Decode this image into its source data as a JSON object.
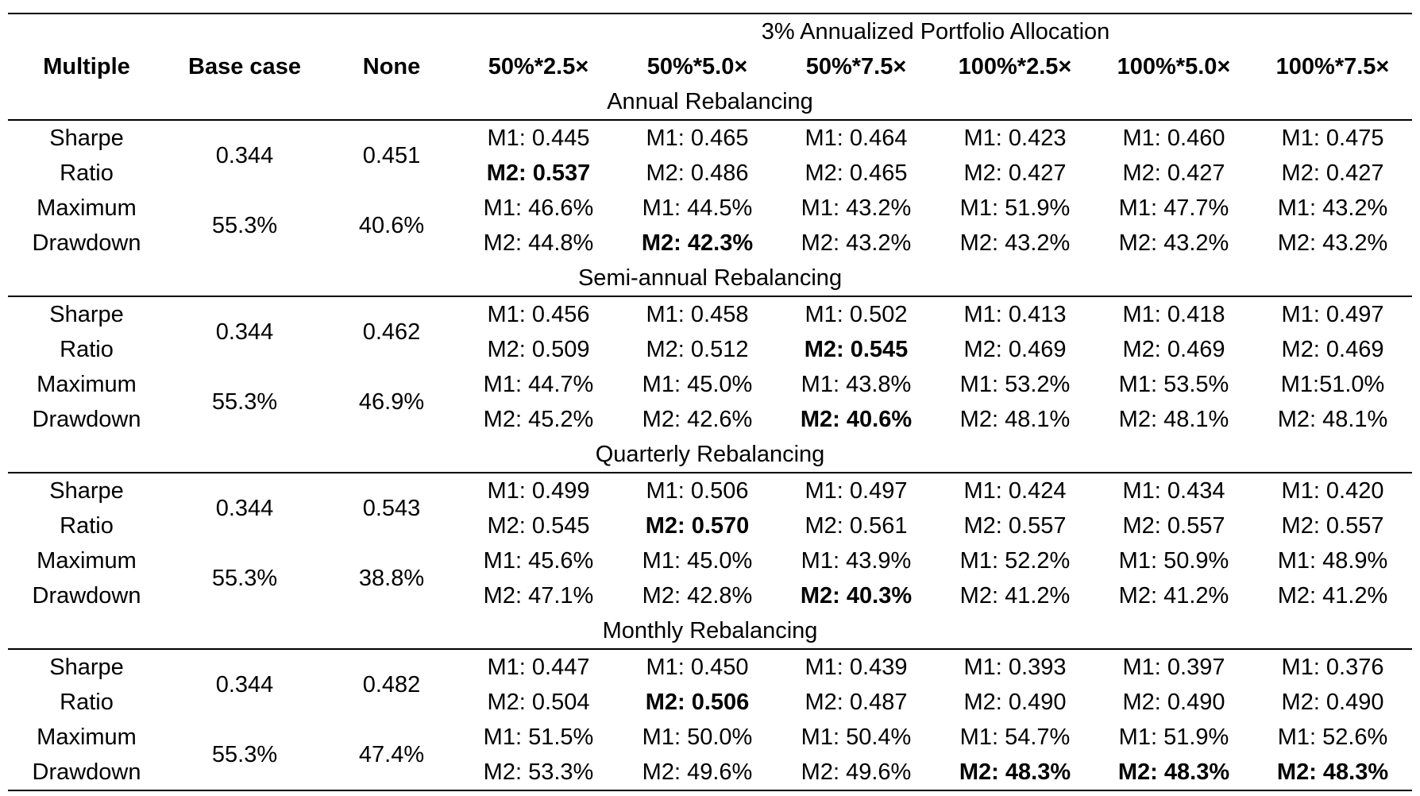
{
  "table": {
    "super_header": "3% Annualized Portfolio Allocation",
    "headers": [
      "Multiple",
      "Base case",
      "None",
      "50%*2.5×",
      "50%*5.0×",
      "50%*7.5×",
      "100%*2.5×",
      "100%*5.0×",
      "100%*7.5×"
    ],
    "sections": [
      {
        "title": "Annual Rebalancing",
        "rows": [
          {
            "metric_line1": "Sharpe",
            "metric_line2": "Ratio",
            "base": "0.344",
            "none": "0.451",
            "m1": [
              "M1: 0.445",
              "M1: 0.465",
              "M1: 0.464",
              "M1: 0.423",
              "M1: 0.460",
              "M1: 0.475"
            ],
            "m2": [
              "M2: 0.537",
              "M2: 0.486",
              "M2: 0.465",
              "M2: 0.427",
              "M2: 0.427",
              "M2: 0.427"
            ],
            "m2_bold": [
              true,
              false,
              false,
              false,
              false,
              false
            ]
          },
          {
            "metric_line1": "Maximum",
            "metric_line2": "Drawdown",
            "base": "55.3%",
            "none": "40.6%",
            "m1": [
              "M1: 46.6%",
              "M1: 44.5%",
              "M1: 43.2%",
              "M1: 51.9%",
              "M1: 47.7%",
              "M1: 43.2%"
            ],
            "m2": [
              "M2: 44.8%",
              "M2: 42.3%",
              "M2: 43.2%",
              "M2: 43.2%",
              "M2: 43.2%",
              "M2: 43.2%"
            ],
            "m2_bold": [
              false,
              true,
              false,
              false,
              false,
              false
            ]
          }
        ]
      },
      {
        "title": "Semi-annual Rebalancing",
        "rows": [
          {
            "metric_line1": "Sharpe",
            "metric_line2": "Ratio",
            "base": "0.344",
            "none": "0.462",
            "m1": [
              "M1: 0.456",
              "M1: 0.458",
              "M1: 0.502",
              "M1: 0.413",
              "M1: 0.418",
              "M1: 0.497"
            ],
            "m2": [
              "M2: 0.509",
              "M2: 0.512",
              "M2: 0.545",
              "M2: 0.469",
              "M2: 0.469",
              "M2: 0.469"
            ],
            "m2_bold": [
              false,
              false,
              true,
              false,
              false,
              false
            ]
          },
          {
            "metric_line1": "Maximum",
            "metric_line2": "Drawdown",
            "base": "55.3%",
            "none": "46.9%",
            "m1": [
              "M1: 44.7%",
              "M1: 45.0%",
              "M1: 43.8%",
              "M1: 53.2%",
              "M1: 53.5%",
              "M1:51.0%"
            ],
            "m2": [
              "M2: 45.2%",
              "M2: 42.6%",
              "M2: 40.6%",
              "M2: 48.1%",
              "M2: 48.1%",
              "M2: 48.1%"
            ],
            "m2_bold": [
              false,
              false,
              true,
              false,
              false,
              false
            ]
          }
        ]
      },
      {
        "title": "Quarterly Rebalancing",
        "rows": [
          {
            "metric_line1": "Sharpe",
            "metric_line2": "Ratio",
            "base": "0.344",
            "none": "0.543",
            "m1": [
              "M1: 0.499",
              "M1: 0.506",
              "M1: 0.497",
              "M1: 0.424",
              "M1: 0.434",
              "M1: 0.420"
            ],
            "m2": [
              "M2: 0.545",
              "M2: 0.570",
              "M2: 0.561",
              "M2: 0.557",
              "M2: 0.557",
              "M2: 0.557"
            ],
            "m2_bold": [
              false,
              true,
              false,
              false,
              false,
              false
            ]
          },
          {
            "metric_line1": "Maximum",
            "metric_line2": "Drawdown",
            "base": "55.3%",
            "none": "38.8%",
            "m1": [
              "M1: 45.6%",
              "M1: 45.0%",
              "M1: 43.9%",
              "M1: 52.2%",
              "M1: 50.9%",
              "M1: 48.9%"
            ],
            "m2": [
              "M2: 47.1%",
              "M2: 42.8%",
              "M2: 40.3%",
              "M2: 41.2%",
              "M2: 41.2%",
              "M2: 41.2%"
            ],
            "m2_bold": [
              false,
              false,
              true,
              false,
              false,
              false
            ]
          }
        ]
      },
      {
        "title": "Monthly Rebalancing",
        "rows": [
          {
            "metric_line1": "Sharpe",
            "metric_line2": "Ratio",
            "base": "0.344",
            "none": "0.482",
            "m1": [
              "M1: 0.447",
              "M1: 0.450",
              "M1: 0.439",
              "M1: 0.393",
              "M1: 0.397",
              "M1: 0.376"
            ],
            "m2": [
              "M2: 0.504",
              "M2: 0.506",
              "M2: 0.487",
              "M2: 0.490",
              "M2: 0.490",
              "M2: 0.490"
            ],
            "m2_bold": [
              false,
              true,
              false,
              false,
              false,
              false
            ]
          },
          {
            "metric_line1": "Maximum",
            "metric_line2": "Drawdown",
            "base": "55.3%",
            "none": "47.4%",
            "m1": [
              "M1: 51.5%",
              "M1: 50.0%",
              "M1: 50.4%",
              "M1: 54.7%",
              "M1: 51.9%",
              "M1: 52.6%"
            ],
            "m2": [
              "M2: 53.3%",
              "M2: 49.6%",
              "M2: 49.6%",
              "M2: 48.3%",
              "M2: 48.3%",
              "M2: 48.3%"
            ],
            "m2_bold": [
              false,
              false,
              false,
              true,
              true,
              true
            ]
          }
        ]
      }
    ]
  }
}
